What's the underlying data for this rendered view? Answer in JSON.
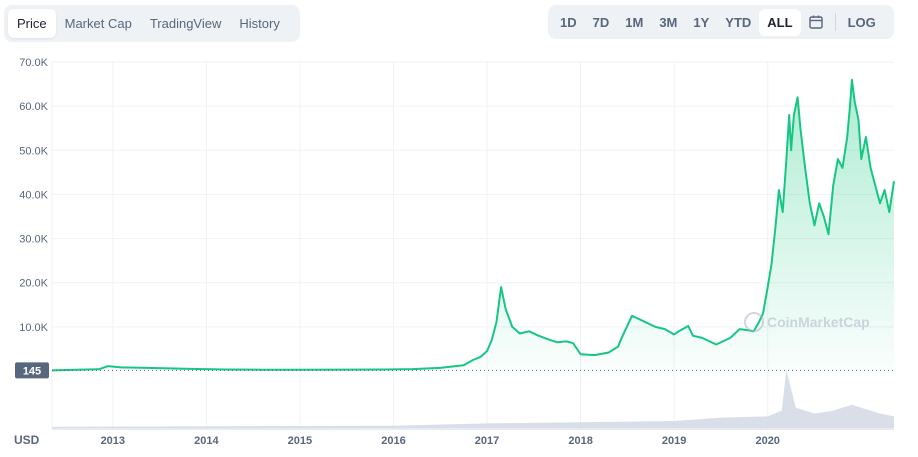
{
  "tabs": [
    {
      "label": "Price",
      "active": true
    },
    {
      "label": "Market Cap",
      "active": false
    },
    {
      "label": "TradingView",
      "active": false
    },
    {
      "label": "History",
      "active": false
    }
  ],
  "ranges": [
    {
      "label": "1D",
      "active": false
    },
    {
      "label": "7D",
      "active": false
    },
    {
      "label": "1M",
      "active": false
    },
    {
      "label": "3M",
      "active": false
    },
    {
      "label": "1Y",
      "active": false
    },
    {
      "label": "YTD",
      "active": false
    },
    {
      "label": "ALL",
      "active": true
    }
  ],
  "calendar_icon": "calendar-icon",
  "log_label": "LOG",
  "watermark": "CoinMarketCap",
  "currency_label": "USD",
  "colors": {
    "line": "#16c784",
    "price_tag_bg": "#58667e",
    "volume": "#cfd6e4",
    "grid": "#eff2f5"
  },
  "chart_data": {
    "type": "area",
    "title": "",
    "xlabel": "",
    "ylabel": "",
    "y_ticks": [
      "10.0K",
      "20.0K",
      "30.0K",
      "40.0K",
      "50.0K",
      "60.0K",
      "70.0K"
    ],
    "y_tick_values": [
      10000,
      20000,
      30000,
      40000,
      50000,
      60000,
      70000
    ],
    "ylim": [
      0,
      70000
    ],
    "x_ticks": [
      "2013",
      "2014",
      "2015",
      "2016",
      "2017",
      "2018",
      "2019",
      "2020"
    ],
    "x_tick_values": [
      2013,
      2014,
      2015,
      2016,
      2017,
      2018,
      2019,
      2020
    ],
    "xlim": [
      2012.35,
      2021.35
    ],
    "current_price_tag": "145",
    "current_price_value": 145,
    "grid": true,
    "series": [
      {
        "x": [
          2012.35,
          2012.6,
          2012.85,
          2012.95,
          2013.1,
          2013.3,
          2013.6,
          2013.9,
          2014.2,
          2014.6,
          2015.0,
          2015.5,
          2015.9,
          2016.2,
          2016.5,
          2016.75,
          2016.85,
          2016.93,
          2017.0,
          2017.05,
          2017.1,
          2017.15,
          2017.2,
          2017.27,
          2017.35,
          2017.45,
          2017.55,
          2017.65,
          2017.75,
          2017.85,
          2017.92,
          2018.0,
          2018.15,
          2018.3,
          2018.4,
          2018.45,
          2018.55,
          2018.65,
          2018.8,
          2018.9,
          2019.0,
          2019.05,
          2019.15,
          2019.2,
          2019.3,
          2019.45,
          2019.6,
          2019.7,
          2019.8,
          2019.85,
          2019.9,
          2019.95,
          2020.0,
          2020.04,
          2020.08,
          2020.12,
          2020.16,
          2020.2,
          2020.23,
          2020.25,
          2020.28,
          2020.32,
          2020.35,
          2020.4,
          2020.45,
          2020.5,
          2020.55,
          2020.6,
          2020.65,
          2020.7,
          2020.75,
          2020.8,
          2020.85,
          2020.88,
          2020.9,
          2020.93,
          2020.97,
          2021.0,
          2021.05,
          2021.1,
          2021.15,
          2021.2,
          2021.25,
          2021.3,
          2021.35
        ],
        "values": [
          145,
          300,
          380,
          1100,
          800,
          750,
          600,
          450,
          350,
          300,
          270,
          320,
          350,
          420,
          700,
          1300,
          2500,
          3200,
          4500,
          7000,
          11000,
          19000,
          14000,
          10000,
          8500,
          9000,
          8000,
          7200,
          6500,
          6700,
          6300,
          3800,
          3600,
          4200,
          5500,
          8000,
          12500,
          11500,
          10000,
          9500,
          8300,
          9000,
          10200,
          8000,
          7500,
          6000,
          7500,
          9500,
          9200,
          9000,
          10800,
          13000,
          19000,
          24000,
          32000,
          41000,
          36000,
          48000,
          58000,
          50000,
          58000,
          62000,
          55000,
          46000,
          38000,
          33000,
          38000,
          35000,
          31000,
          42000,
          48000,
          46000,
          53000,
          60000,
          66000,
          61000,
          57000,
          48000,
          53000,
          46000,
          42000,
          38000,
          41000,
          36000,
          43000
        ]
      }
    ],
    "volume": {
      "x": [
        2012.35,
        2016.0,
        2017.0,
        2018.0,
        2019.0,
        2019.5,
        2020.0,
        2020.15,
        2020.2,
        2020.3,
        2020.5,
        2020.7,
        2020.9,
        2021.0,
        2021.2,
        2021.35
      ],
      "values": [
        0.02,
        0.04,
        0.08,
        0.1,
        0.12,
        0.18,
        0.2,
        0.3,
        1.0,
        0.35,
        0.25,
        0.3,
        0.4,
        0.35,
        0.25,
        0.2
      ]
    }
  }
}
